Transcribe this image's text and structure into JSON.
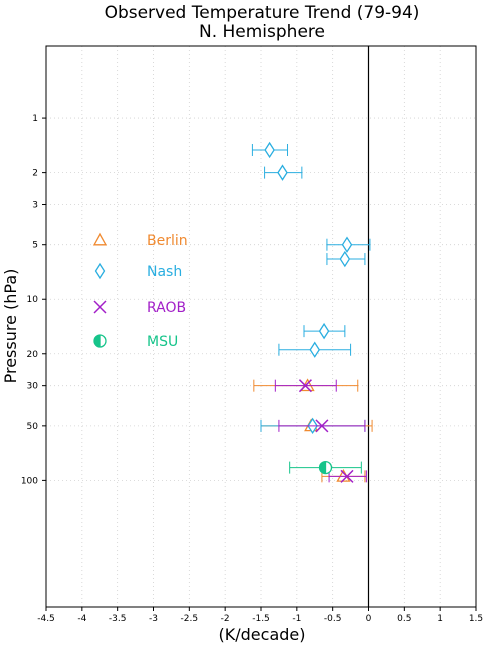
{
  "chart_data": {
    "type": "scatter",
    "title": "Observed Temperature Trend (79-94)",
    "subtitle": "N. Hemisphere",
    "xlabel": "(K/decade)",
    "ylabel": "Pressure (hPa)",
    "xlim": [
      -4.5,
      1.5
    ],
    "ylim_log": [
      0.4,
      500
    ],
    "y_reversed": true,
    "y_scale": "log",
    "grid": true,
    "legend_position": "left-middle",
    "x_ticks": [
      {
        "v": -4.5,
        "label": "-4.5"
      },
      {
        "v": -4,
        "label": "-4"
      },
      {
        "v": -3.5,
        "label": "-3.5"
      },
      {
        "v": -3,
        "label": "-3"
      },
      {
        "v": -2.5,
        "label": "-2.5"
      },
      {
        "v": -2,
        "label": "-2"
      },
      {
        "v": -1.5,
        "label": "-1.5"
      },
      {
        "v": -1,
        "label": "-1"
      },
      {
        "v": -0.5,
        "label": "-0.5"
      },
      {
        "v": 0,
        "label": "0"
      },
      {
        "v": 0.5,
        "label": "0.5"
      },
      {
        "v": 1,
        "label": "1"
      },
      {
        "v": 1.5,
        "label": "1.5"
      }
    ],
    "y_ticks": [
      {
        "v": 1,
        "label": "1"
      },
      {
        "v": 2,
        "label": "2"
      },
      {
        "v": 3,
        "label": "3"
      },
      {
        "v": 5,
        "label": "5"
      },
      {
        "v": 10,
        "label": "10"
      },
      {
        "v": 20,
        "label": "20"
      },
      {
        "v": 30,
        "label": "30"
      },
      {
        "v": 50,
        "label": "50"
      },
      {
        "v": 100,
        "label": "100"
      }
    ],
    "zero_line_x": 0,
    "series": [
      {
        "name": "Berlin",
        "color": "#f08a30",
        "marker": "triangle",
        "points": [
          {
            "x": -0.85,
            "y": 30,
            "lo": -1.6,
            "hi": -0.15
          },
          {
            "x": -0.8,
            "y": 50,
            "lo": -1.5,
            "hi": 0.05
          },
          {
            "x": -0.35,
            "y": 95,
            "lo": -0.65,
            "hi": -0.05
          }
        ]
      },
      {
        "name": "Nash",
        "color": "#2aaee0",
        "marker": "diamond",
        "points": [
          {
            "x": -1.38,
            "y": 1.5,
            "lo": -1.62,
            "hi": -1.13
          },
          {
            "x": -1.2,
            "y": 2,
            "lo": -1.45,
            "hi": -0.93
          },
          {
            "x": -0.3,
            "y": 5,
            "lo": -0.58,
            "hi": 0.02
          },
          {
            "x": -0.33,
            "y": 6,
            "lo": -0.58,
            "hi": -0.05
          },
          {
            "x": -0.62,
            "y": 15,
            "lo": -0.9,
            "hi": -0.33
          },
          {
            "x": -0.75,
            "y": 19,
            "lo": -1.25,
            "hi": -0.25
          },
          {
            "x": -0.78,
            "y": 50,
            "lo": -1.5,
            "hi": -0.05
          }
        ]
      },
      {
        "name": "RAOB",
        "color": "#a21fc8",
        "marker": "x",
        "points": [
          {
            "x": -0.88,
            "y": 30,
            "lo": -1.3,
            "hi": -0.45
          },
          {
            "x": -0.65,
            "y": 50,
            "lo": -1.25,
            "hi": -0.05
          },
          {
            "x": -0.3,
            "y": 95,
            "lo": -0.55,
            "hi": -0.03
          }
        ]
      },
      {
        "name": "MSU",
        "color": "#16c48a",
        "marker": "half-circle",
        "points": [
          {
            "x": -0.6,
            "y": 85,
            "lo": -1.1,
            "hi": -0.1
          }
        ]
      }
    ]
  }
}
